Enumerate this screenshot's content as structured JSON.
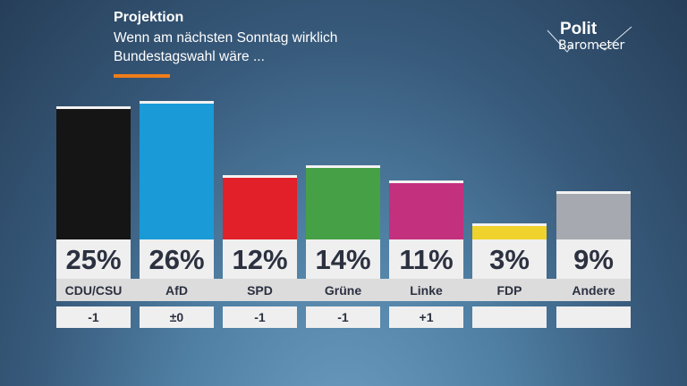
{
  "header": {
    "title": "Projektion",
    "subtitle_line1": "Wenn am nächsten Sonntag wirklich",
    "subtitle_line2": "Bundestagswahl wäre ...",
    "accent_color": "#ef7d1a"
  },
  "logo": {
    "line1": "Polit",
    "line2": "Barometer"
  },
  "chart_data": {
    "type": "bar",
    "title": "Projektion",
    "categories": [
      "CDU/CSU",
      "AfD",
      "SPD",
      "Grüne",
      "Linke",
      "FDP",
      "Andere"
    ],
    "values": [
      25,
      26,
      12,
      14,
      11,
      3,
      9
    ],
    "value_labels": [
      "25%",
      "26%",
      "12%",
      "14%",
      "11%",
      "3%",
      "9%"
    ],
    "changes": [
      "-1",
      "±0",
      "-1",
      "-1",
      "+1",
      "",
      ""
    ],
    "colors": [
      "#151515",
      "#1a9ad6",
      "#e2202a",
      "#46a046",
      "#c3307e",
      "#f0d22c",
      "#a6a9b0"
    ],
    "ylim": [
      0,
      26
    ]
  }
}
